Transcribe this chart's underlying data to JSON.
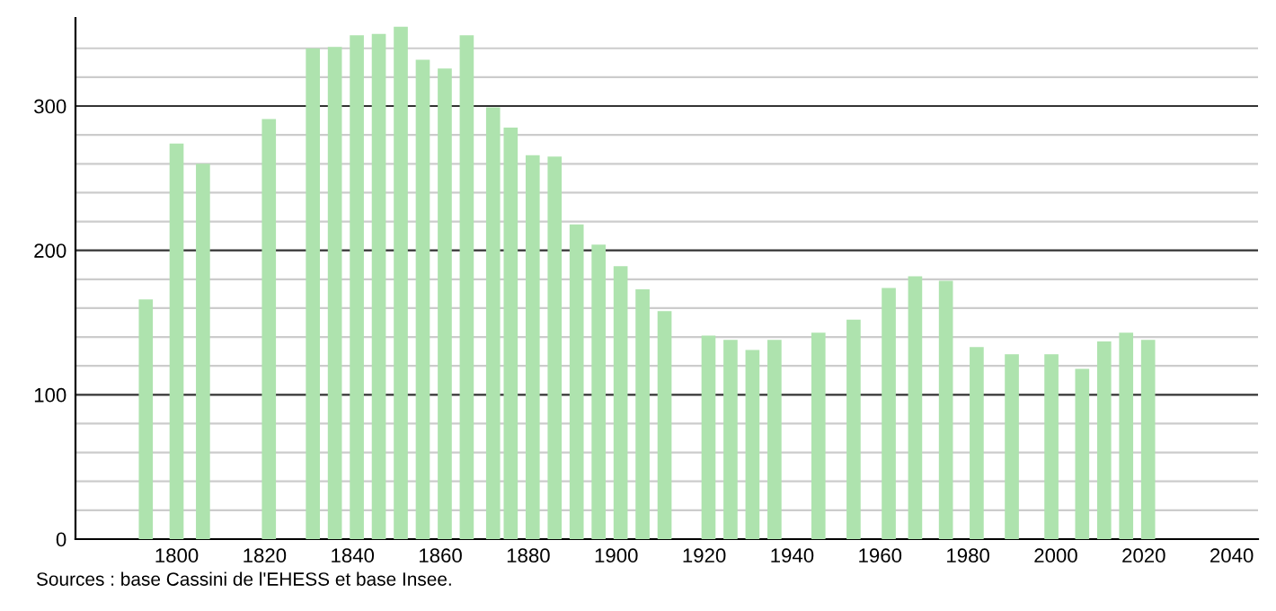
{
  "chart_data": {
    "type": "bar",
    "color": "#aee3ae",
    "x": [
      1793,
      1800,
      1806,
      1821,
      1831,
      1836,
      1841,
      1846,
      1851,
      1856,
      1861,
      1866,
      1872,
      1876,
      1881,
      1886,
      1891,
      1896,
      1901,
      1906,
      1911,
      1921,
      1926,
      1931,
      1936,
      1946,
      1954,
      1962,
      1968,
      1975,
      1982,
      1990,
      1999,
      2006,
      2011,
      2016,
      2021
    ],
    "values": [
      166,
      274,
      260,
      291,
      340,
      341,
      349,
      350,
      355,
      332,
      326,
      349,
      299,
      285,
      266,
      265,
      218,
      204,
      189,
      173,
      158,
      141,
      138,
      131,
      138,
      143,
      152,
      174,
      182,
      179,
      133,
      128,
      128,
      118,
      137,
      143,
      138
    ],
    "xlim": [
      1777,
      2046
    ],
    "xticks": [
      1800,
      1820,
      1840,
      1860,
      1880,
      1900,
      1920,
      1940,
      1960,
      1980,
      2000,
      2020,
      2040
    ],
    "ylim": [
      0,
      361
    ],
    "yticks": [
      0,
      {
        "value": 20,
        "label": null
      },
      {
        "value": 40,
        "label": null
      },
      {
        "value": 60,
        "label": null
      },
      {
        "value": 80,
        "label": null
      },
      100,
      {
        "value": 120,
        "label": null
      },
      {
        "value": 140,
        "label": null
      },
      {
        "value": 160,
        "label": null
      },
      {
        "value": 180,
        "label": null
      },
      200,
      {
        "value": 220,
        "label": null
      },
      {
        "value": 240,
        "label": null
      },
      {
        "value": 260,
        "label": null
      },
      {
        "value": 280,
        "label": null
      },
      300,
      {
        "value": 320,
        "label": null
      },
      {
        "value": 340,
        "label": null
      }
    ],
    "grid": "y",
    "annotations": [
      "Sources : base Cassini de l'EHESS et base Insee."
    ]
  }
}
